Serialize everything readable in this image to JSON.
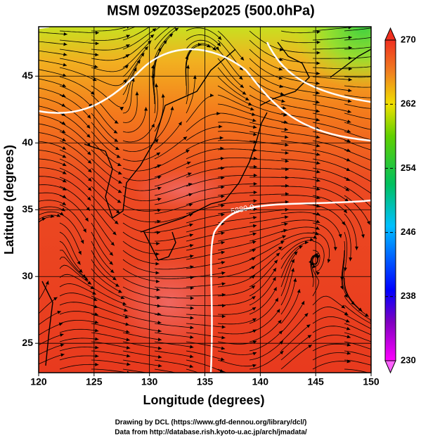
{
  "chart_data": {
    "type": "map",
    "title": "MSM 09Z03Sep2025 (500.0hPa)",
    "xlabel": "Longitude (degrees)",
    "ylabel": "Latitude  (degrees)",
    "xlim": [
      120,
      150
    ],
    "xticks": [
      120,
      125,
      130,
      135,
      140,
      145,
      150
    ],
    "ylim": [
      22.8,
      48.7
    ],
    "yticks": [
      25,
      30,
      35,
      40,
      45
    ],
    "grid": true,
    "annotations": [
      "5880.0"
    ],
    "colorbar": {
      "lim": [
        230,
        270
      ],
      "ticks": [
        230,
        238,
        246,
        254,
        262,
        270
      ]
    },
    "footer": [
      "Drawing by DCL (https://www.gfd-dennou.org/library/dcl/)",
      "Data from http://database.rish.kyoto-u.ac.jp/arch/jmadata/"
    ]
  }
}
